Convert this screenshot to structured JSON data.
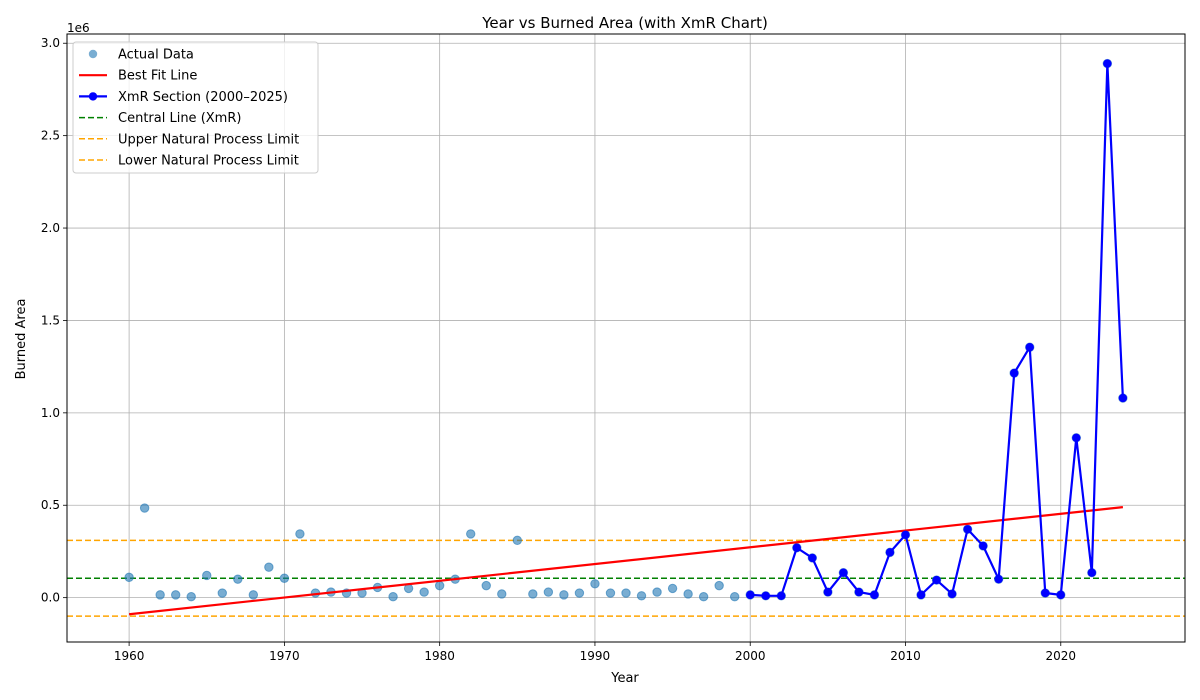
{
  "chart_data": {
    "type": "line",
    "title": "Year vs Burned Area (with XmR Chart)",
    "xlabel": "Year",
    "ylabel": "Burned Area",
    "y_offset_text": "1e6",
    "xlim": [
      1956,
      2028
    ],
    "ylim": [
      -240000,
      3050000
    ],
    "x_ticks": [
      1960,
      1970,
      1980,
      1990,
      2000,
      2010,
      2020
    ],
    "x_tick_labels": [
      "1960",
      "1970",
      "1980",
      "1990",
      "2000",
      "2010",
      "2020"
    ],
    "y_ticks": [
      0,
      500000,
      1000000,
      1500000,
      2000000,
      2500000,
      3000000
    ],
    "y_tick_labels": [
      "0.0",
      "0.5",
      "1.0",
      "1.5",
      "2.0",
      "2.5",
      "3.0"
    ],
    "grid": true,
    "legend_position": "top-left",
    "colors": {
      "actual": "#1f77b4",
      "fit": "#ff0000",
      "xmr": "#0000ff",
      "central": "#008000",
      "limits": "#ffa500"
    },
    "series": [
      {
        "name": "Actual Data",
        "kind": "scatter",
        "x": [
          1960,
          1961,
          1962,
          1963,
          1964,
          1965,
          1966,
          1967,
          1968,
          1969,
          1970,
          1971,
          1972,
          1973,
          1974,
          1975,
          1976,
          1977,
          1978,
          1979,
          1980,
          1981,
          1982,
          1983,
          1984,
          1985,
          1986,
          1987,
          1988,
          1989,
          1990,
          1991,
          1992,
          1993,
          1994,
          1995,
          1996,
          1997,
          1998,
          1999,
          2000,
          2001,
          2002,
          2003,
          2004,
          2005,
          2006,
          2007,
          2008,
          2009,
          2010,
          2011,
          2012,
          2013,
          2014,
          2015,
          2016,
          2017,
          2018,
          2019,
          2020,
          2021,
          2022,
          2023,
          2024
        ],
        "y": [
          110000,
          485000,
          15000,
          15000,
          5000,
          120000,
          25000,
          100000,
          15000,
          165000,
          105000,
          345000,
          25000,
          30000,
          25000,
          25000,
          55000,
          5000,
          50000,
          30000,
          65000,
          100000,
          345000,
          65000,
          20000,
          310000,
          20000,
          30000,
          15000,
          25000,
          75000,
          25000,
          25000,
          10000,
          30000,
          50000,
          20000,
          5000,
          65000,
          5000,
          15000,
          10000,
          10000,
          270000,
          215000,
          30000,
          135000,
          30000,
          15000,
          245000,
          340000,
          15000,
          95000,
          20000,
          370000,
          280000,
          100000,
          1215000,
          1355000,
          25000,
          15000,
          865000,
          135000,
          2890000,
          1080000
        ]
      },
      {
        "name": "Best Fit Line",
        "kind": "line",
        "x": [
          1960,
          2024
        ],
        "y": [
          -90000,
          490000
        ]
      },
      {
        "name": "XmR Section (2000–2025)",
        "kind": "line-marker",
        "x": [
          2000,
          2001,
          2002,
          2003,
          2004,
          2005,
          2006,
          2007,
          2008,
          2009,
          2010,
          2011,
          2012,
          2013,
          2014,
          2015,
          2016,
          2017,
          2018,
          2019,
          2020,
          2021,
          2022,
          2023,
          2024
        ],
        "y": [
          15000,
          10000,
          10000,
          270000,
          215000,
          30000,
          135000,
          30000,
          15000,
          245000,
          340000,
          15000,
          95000,
          20000,
          370000,
          280000,
          100000,
          1215000,
          1355000,
          25000,
          15000,
          865000,
          135000,
          2890000,
          1080000
        ]
      },
      {
        "name": "Central Line (XmR)",
        "kind": "hline",
        "y": 105000
      },
      {
        "name": "Upper Natural Process Limit",
        "kind": "hline",
        "y": 310000
      },
      {
        "name": "Lower Natural Process Limit",
        "kind": "hline",
        "y": -100000
      }
    ]
  }
}
